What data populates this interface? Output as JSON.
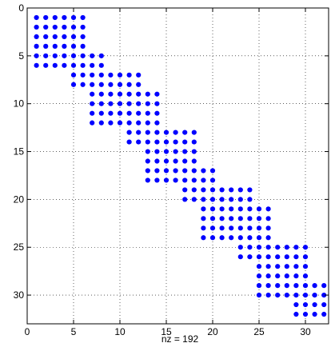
{
  "chart_data": {
    "type": "scatter",
    "title": "",
    "xlabel": "nz = 192",
    "ylabel": "",
    "xlim": [
      0,
      32.5
    ],
    "ylim": [
      0,
      33
    ],
    "y_reversed": true,
    "grid": true,
    "marker_color": "#0000ff",
    "x_ticks": [
      0,
      5,
      10,
      15,
      20,
      25,
      30
    ],
    "y_ticks": [
      0,
      5,
      10,
      15,
      20,
      25,
      30
    ],
    "blocks": [
      {
        "rows": [
          1,
          6
        ],
        "cols": [
          1,
          6
        ]
      },
      {
        "rows": [
          5,
          8
        ],
        "cols": [
          5,
          8
        ]
      },
      {
        "rows": [
          7,
          12
        ],
        "cols": [
          7,
          12
        ]
      },
      {
        "rows": [
          9,
          14
        ],
        "cols": [
          11,
          14
        ]
      },
      {
        "rows": [
          13,
          18
        ],
        "cols": [
          13,
          18
        ]
      },
      {
        "rows": [
          17,
          20
        ],
        "cols": [
          17,
          20
        ]
      },
      {
        "rows": [
          19,
          24
        ],
        "cols": [
          19,
          24
        ]
      },
      {
        "rows": [
          21,
          26
        ],
        "cols": [
          23,
          26
        ]
      },
      {
        "rows": [
          25,
          30
        ],
        "cols": [
          25,
          30
        ]
      },
      {
        "rows": [
          29,
          32
        ],
        "cols": [
          29,
          32
        ]
      }
    ]
  }
}
